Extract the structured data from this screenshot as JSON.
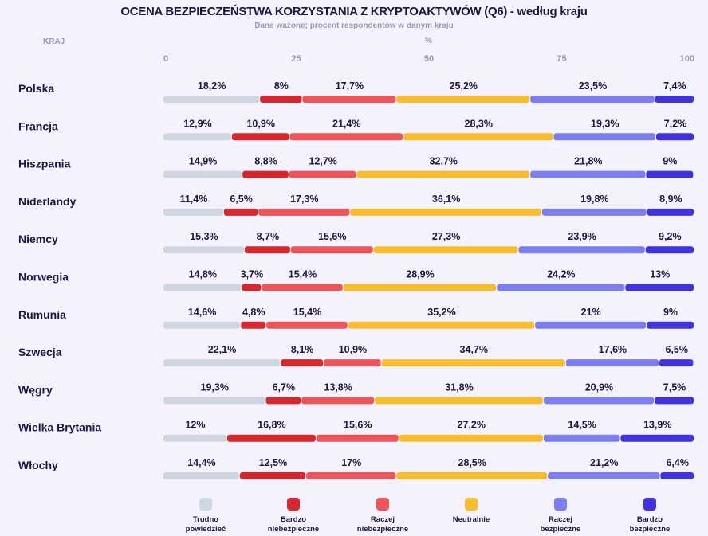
{
  "chart_data": {
    "type": "bar",
    "orientation": "horizontal-stacked-100",
    "title": "OCENA BEZPIECZEŃSTWA KORZYSTANIA Z KRYPTOAKTYWÓW (Q6) - według kraju",
    "subtitle": "Dane ważone; procent respondentów w danym kraju",
    "country_header": "KRAJ",
    "unit_label": "%",
    "xlim": [
      0,
      100
    ],
    "ticks": [
      0,
      25,
      50,
      75,
      100
    ],
    "categories": [
      "Polska",
      "Francja",
      "Hiszpania",
      "Niderlandy",
      "Niemcy",
      "Norwegia",
      "Rumunia",
      "Szwecja",
      "Węgry",
      "Wielka Brytania",
      "Włochy"
    ],
    "series": [
      {
        "name": "Trudno powiedzieć",
        "color": "#cfd5e1",
        "values": [
          18.2,
          12.9,
          14.9,
          11.4,
          15.3,
          14.8,
          14.6,
          22.1,
          19.3,
          12,
          14.4
        ],
        "labels": [
          "18,2%",
          "12,9%",
          "14,9%",
          "11,4%",
          "15,3%",
          "14,8%",
          "14,6%",
          "22,1%",
          "19,3%",
          "12%",
          "14,4%"
        ]
      },
      {
        "name": "Bardzo niebezpieczne",
        "color": "#d7262c",
        "values": [
          8,
          10.9,
          8.8,
          6.5,
          8.7,
          3.7,
          4.8,
          8.1,
          6.7,
          16.8,
          12.5
        ],
        "labels": [
          "8%",
          "10,9%",
          "8,8%",
          "6,5%",
          "8,7%",
          "3,7%",
          "4,8%",
          "8,1%",
          "6,7%",
          "16,8%",
          "12,5%"
        ]
      },
      {
        "name": "Raczej niebezpieczne",
        "color": "#ef5459",
        "values": [
          17.7,
          21.4,
          12.7,
          17.3,
          15.6,
          15.4,
          15.4,
          10.9,
          13.8,
          15.6,
          17
        ],
        "labels": [
          "17,7%",
          "21,4%",
          "12,7%",
          "17,3%",
          "15,6%",
          "15,4%",
          "15,4%",
          "10,9%",
          "13,8%",
          "15,6%",
          "17%"
        ]
      },
      {
        "name": "Neutralnie",
        "color": "#f7bd2c",
        "values": [
          25.2,
          28.3,
          32.7,
          36.1,
          27.3,
          28.9,
          35.2,
          34.7,
          31.8,
          27.2,
          28.5
        ],
        "labels": [
          "25,2%",
          "28,3%",
          "32,7%",
          "36,1%",
          "27,3%",
          "28,9%",
          "35,2%",
          "34,7%",
          "31,8%",
          "27,2%",
          "28,5%"
        ]
      },
      {
        "name": "Raczej bezpieczne",
        "color": "#7d7df2",
        "values": [
          23.5,
          19.3,
          21.8,
          19.8,
          23.9,
          24.2,
          21,
          17.6,
          20.9,
          14.5,
          21.2
        ],
        "labels": [
          "23,5%",
          "19,3%",
          "21,8%",
          "19,8%",
          "23,9%",
          "24,2%",
          "21%",
          "17,6%",
          "20,9%",
          "14,5%",
          "21,2%"
        ]
      },
      {
        "name": "Bardzo bezpieczne",
        "color": "#4132e0",
        "values": [
          7.4,
          7.2,
          9,
          8.9,
          9.2,
          13,
          9,
          6.5,
          7.5,
          13.9,
          6.4
        ],
        "labels": [
          "7,4%",
          "7,2%",
          "9%",
          "8,9%",
          "9,2%",
          "13%",
          "9%",
          "6,5%",
          "7,5%",
          "13,9%",
          "6,4%"
        ]
      }
    ],
    "legend": {
      "placement": "bottom",
      "items": [
        {
          "line1": "Trudno",
          "line2": "powiedzieć",
          "color": "#cfd5e1"
        },
        {
          "line1": "Bardzo",
          "line2": "niebezpieczne",
          "color": "#d7262c"
        },
        {
          "line1": "Raczej",
          "line2": "niebezpieczne",
          "color": "#ef5459"
        },
        {
          "line1": "Neutralnie",
          "line2": "",
          "color": "#f7bd2c"
        },
        {
          "line1": "Raczej",
          "line2": "bezpieczne",
          "color": "#7d7df2"
        },
        {
          "line1": "Bardzo",
          "line2": "bezpieczne",
          "color": "#4132e0"
        }
      ]
    }
  }
}
